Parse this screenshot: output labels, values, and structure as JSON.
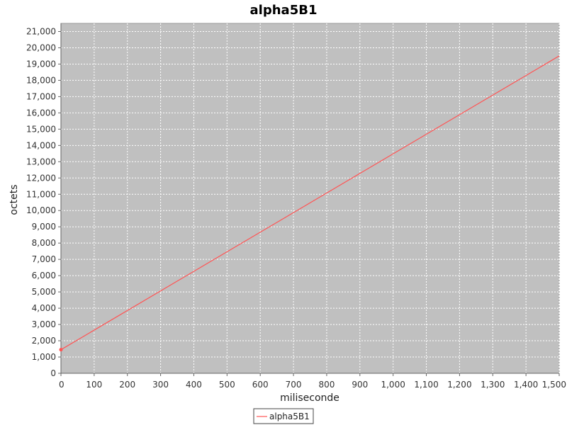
{
  "chart_data": {
    "type": "line",
    "title": "alpha5B1",
    "xlabel": "miliseconde",
    "ylabel": "octets",
    "xlim": [
      0,
      1500
    ],
    "ylim": [
      0,
      21500
    ],
    "x_ticks": [
      0,
      100,
      200,
      300,
      400,
      500,
      600,
      700,
      800,
      900,
      1000,
      1100,
      1200,
      1300,
      1400,
      1500
    ],
    "x_tick_labels": [
      "0",
      "100",
      "200",
      "300",
      "400",
      "500",
      "600",
      "700",
      "800",
      "900",
      "1,000",
      "1,100",
      "1,200",
      "1,300",
      "1,400",
      "1,500"
    ],
    "y_ticks": [
      0,
      1000,
      2000,
      3000,
      4000,
      5000,
      6000,
      7000,
      8000,
      9000,
      10000,
      11000,
      12000,
      13000,
      14000,
      15000,
      16000,
      17000,
      18000,
      19000,
      20000,
      21000
    ],
    "y_tick_labels": [
      "0",
      "1,000",
      "2,000",
      "3,000",
      "4,000",
      "5,000",
      "6,000",
      "7,000",
      "8,000",
      "9,000",
      "10,000",
      "11,000",
      "12,000",
      "13,000",
      "14,000",
      "15,000",
      "16,000",
      "17,000",
      "18,000",
      "19,000",
      "20,000",
      "21,000"
    ],
    "grid": true,
    "legend_position": "bottom-center",
    "plot_background": "#c0c0c0",
    "series": [
      {
        "name": "alpha5B1",
        "color": "#ff5555",
        "x": [
          0,
          1500
        ],
        "y": [
          1450,
          19500
        ]
      }
    ]
  }
}
